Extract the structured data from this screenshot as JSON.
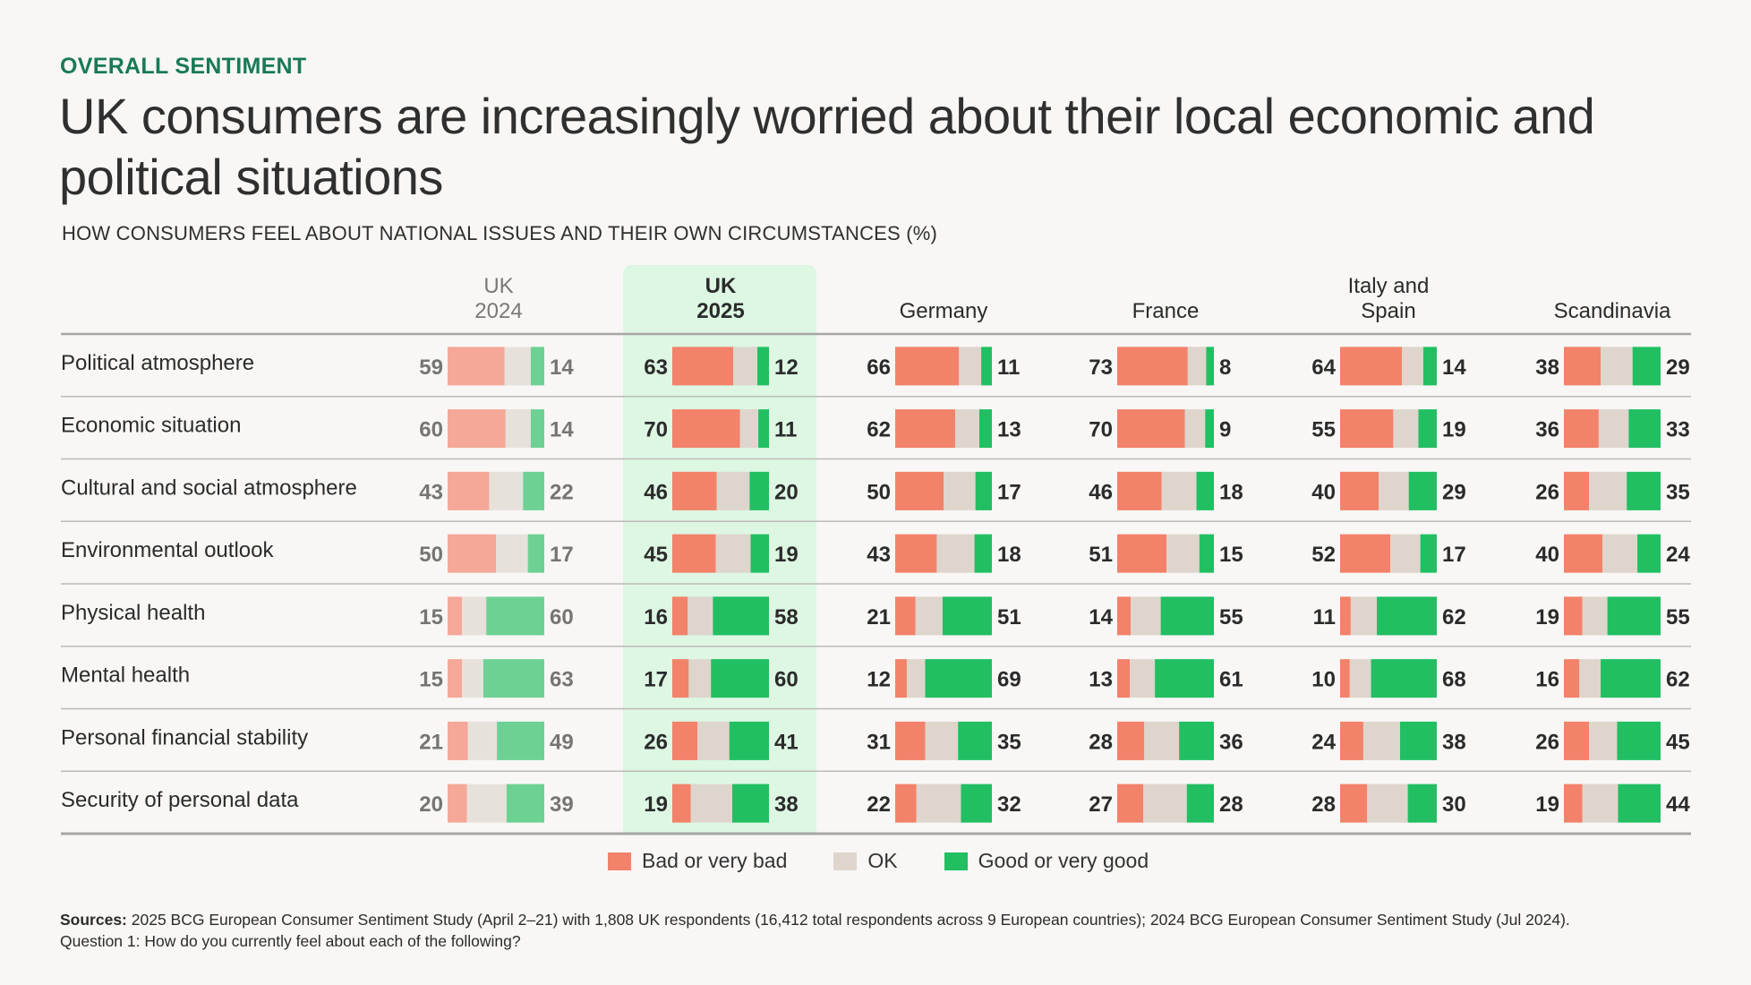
{
  "kicker": "OVERALL SENTIMENT",
  "title": "UK consumers are increasingly worried about their local economic and political situations",
  "subtitle": "HOW CONSUMERS FEEL ABOUT NATIONAL ISSUES AND THEIR OWN CIRCUMSTANCES (%)",
  "colors": {
    "bad": "#F2826A",
    "ok": "#DED5CC",
    "good": "#21BF62",
    "bad_faded": "#F5A898",
    "ok_faded": "#E6E1DB",
    "good_faded": "#6DD194",
    "highlight_bg": "#DDF7E3",
    "kicker": "#197A56"
  },
  "legend": [
    {
      "key": "bad",
      "label": "Bad or very bad"
    },
    {
      "key": "ok",
      "label": "OK"
    },
    {
      "key": "good",
      "label": "Good or very good"
    }
  ],
  "sources_label": "Sources:",
  "sources_text": " 2025 BCG European Consumer Sentiment Study (April 2–21) with 1,808 UK respondents (16,412 total respondents across 9 European countries); 2024 BCG European Consumer Sentiment Study (Jul 2024).",
  "question_text": "Question 1: How do you currently feel about each of the following?",
  "chart_data": {
    "type": "bar",
    "subtype": "stacked-horizontal-100",
    "title": "HOW CONSUMERS FEEL ABOUT NATIONAL ISSUES AND THEIR OWN CIRCUMSTANCES (%)",
    "categories": [
      "Political atmosphere",
      "Economic situation",
      "Cultural and social atmosphere",
      "Environmental outlook",
      "Physical health",
      "Mental health",
      "Personal financial stability",
      "Security of personal data"
    ],
    "segments": [
      "Bad or very bad",
      "OK",
      "Good or very good"
    ],
    "note": "Bar segments show Bad (left label), OK (remainder to 100), Good (right label)",
    "groups": [
      {
        "name": "UK 2024",
        "header_lines": [
          "UK",
          "2024"
        ],
        "style": "faded",
        "bad": [
          59,
          60,
          43,
          50,
          15,
          15,
          21,
          20
        ],
        "good": [
          14,
          14,
          22,
          17,
          60,
          63,
          49,
          39
        ]
      },
      {
        "name": "UK 2025",
        "header_lines": [
          "UK",
          "2025"
        ],
        "style": "highlight",
        "bad": [
          63,
          70,
          46,
          45,
          16,
          17,
          26,
          19
        ],
        "good": [
          12,
          11,
          20,
          19,
          58,
          60,
          41,
          38
        ]
      },
      {
        "name": "Germany",
        "header_lines": [
          "Germany"
        ],
        "style": "normal",
        "bad": [
          66,
          62,
          50,
          43,
          21,
          12,
          31,
          22
        ],
        "good": [
          11,
          13,
          17,
          18,
          51,
          69,
          35,
          32
        ]
      },
      {
        "name": "France",
        "header_lines": [
          "France"
        ],
        "style": "normal",
        "bad": [
          73,
          70,
          46,
          51,
          14,
          13,
          28,
          27
        ],
        "good": [
          8,
          9,
          18,
          15,
          55,
          61,
          36,
          28
        ]
      },
      {
        "name": "Italy and Spain",
        "header_lines": [
          "Italy and",
          "Spain"
        ],
        "style": "normal",
        "bad": [
          64,
          55,
          40,
          52,
          11,
          10,
          24,
          28
        ],
        "good": [
          14,
          19,
          29,
          17,
          62,
          68,
          38,
          30
        ]
      },
      {
        "name": "Scandinavia",
        "header_lines": [
          "Scandinavia"
        ],
        "style": "normal",
        "bad": [
          38,
          36,
          26,
          40,
          19,
          16,
          26,
          19
        ],
        "good": [
          29,
          33,
          35,
          24,
          55,
          62,
          45,
          44
        ]
      }
    ],
    "legend_position": "bottom-center"
  }
}
